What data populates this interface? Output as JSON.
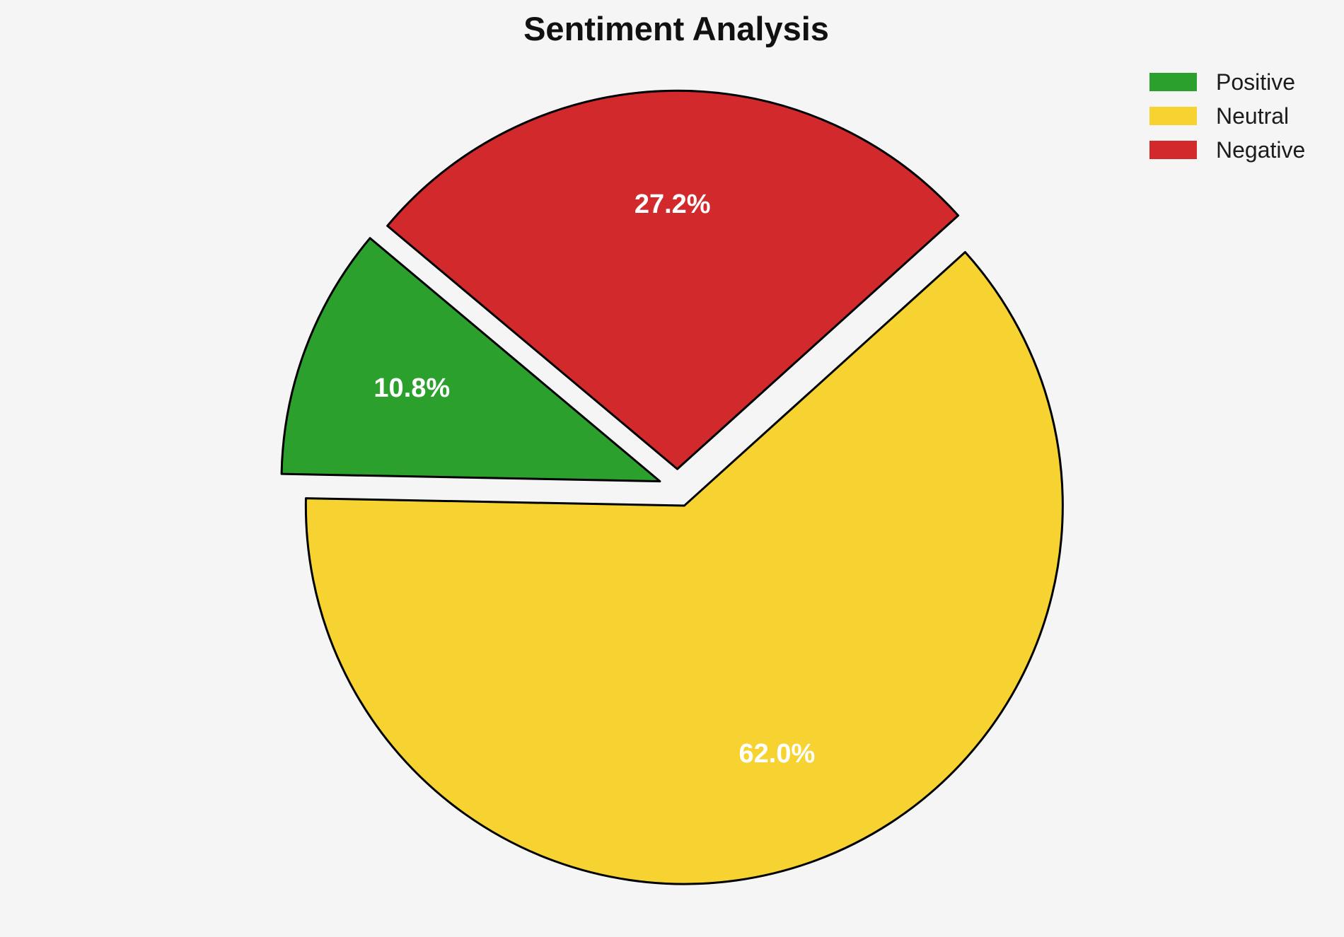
{
  "background_color": "#f5f5f6",
  "chart_data": {
    "type": "pie",
    "title": "Sentiment Analysis",
    "labels": [
      "Positive",
      "Neutral",
      "Negative"
    ],
    "values": [
      10.8,
      62.0,
      27.2
    ],
    "pct_labels": [
      "10.8%",
      "62.0%",
      "27.2%"
    ],
    "colors": [
      "#2ca02c",
      "#f7d332",
      "#d2292c"
    ],
    "label_color": "#ffffff",
    "edge_color": "#000000",
    "start_angle": 140,
    "counterclockwise": true,
    "explode": [
      0.05,
      0.05,
      0.05
    ],
    "pct_distance": 0.7,
    "legend_position": "upper right"
  }
}
